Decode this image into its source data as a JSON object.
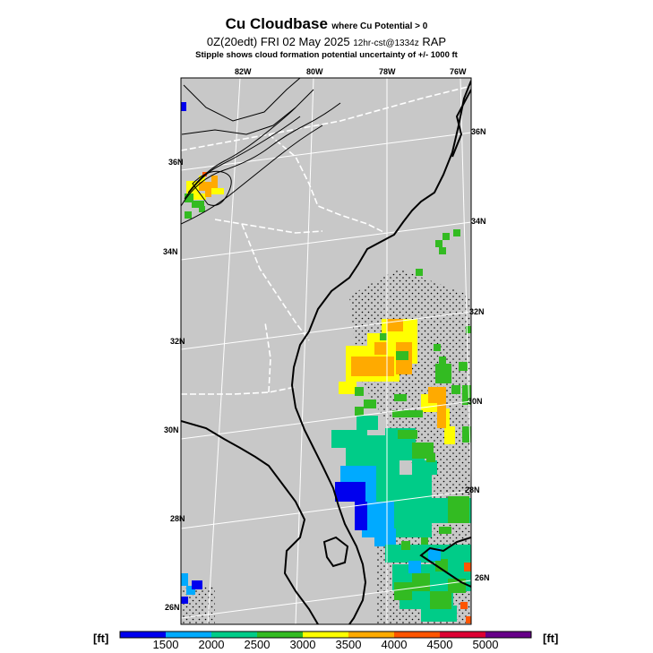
{
  "header": {
    "title": "Cu Cloudbase",
    "title_note": "where Cu Potential > 0",
    "subtitle_main": "0Z(20edt) FRI 02 May 2025",
    "subtitle_small": "12hr-cst@1334z",
    "subtitle_model": "RAP",
    "stipple_note": "Stipple shows cloud formation potential uncertainty of +/- 1000 ft"
  },
  "map": {
    "background_color": "#c8c8c8",
    "longitude_labels": [
      "82W",
      "80W",
      "78W",
      "76W"
    ],
    "latitude_labels_left": [
      "36N",
      "34N",
      "32N",
      "30N",
      "28N",
      "26N"
    ],
    "latitude_labels_right": [
      "36N",
      "34N",
      "32N",
      "30N",
      "28N",
      "26N"
    ]
  },
  "legend": {
    "unit_left": "[ft]",
    "unit_right": "[ft]",
    "ticks": [
      "1500",
      "2000",
      "2500",
      "3000",
      "3500",
      "4000",
      "4500",
      "5000"
    ],
    "colors": [
      "#0000ee",
      "#00aaff",
      "#00cc88",
      "#33bb22",
      "#ffff00",
      "#ffaa00",
      "#ff5500",
      "#dd0033",
      "#660088"
    ]
  }
}
